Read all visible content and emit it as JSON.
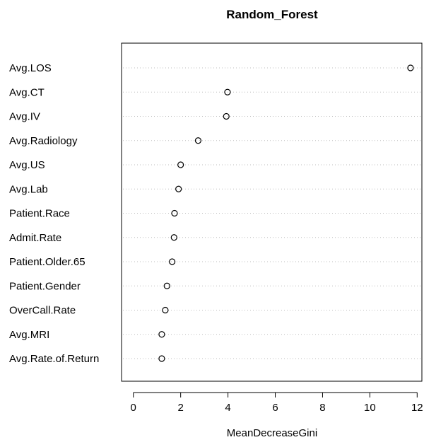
{
  "chart_data": {
    "type": "scatter",
    "variant": "dotchart",
    "title": "Random_Forest",
    "xlabel": "MeanDecreaseGini",
    "ylabel": "",
    "xlim": [
      -0.5,
      12.2
    ],
    "x_ticks": [
      0,
      2,
      4,
      6,
      8,
      10,
      12
    ],
    "grid": "dotted horizontal guide lines per category",
    "legend": "none",
    "marker": "open-circle",
    "marker_color": "#000000",
    "grid_color": "#bebebe",
    "categories": [
      "Avg.LOS",
      "Avg.CT",
      "Avg.IV",
      "Avg.Radiology",
      "Avg.US",
      "Avg.Lab",
      "Patient.Race",
      "Admit.Rate",
      "Patient.Older.65",
      "Patient.Gender",
      "OverCall.Rate",
      "Avg.MRI",
      "Avg.Rate.of.Return"
    ],
    "values": [
      11.72,
      3.98,
      3.93,
      2.74,
      2.0,
      1.91,
      1.74,
      1.72,
      1.64,
      1.42,
      1.35,
      1.2,
      1.2
    ]
  }
}
